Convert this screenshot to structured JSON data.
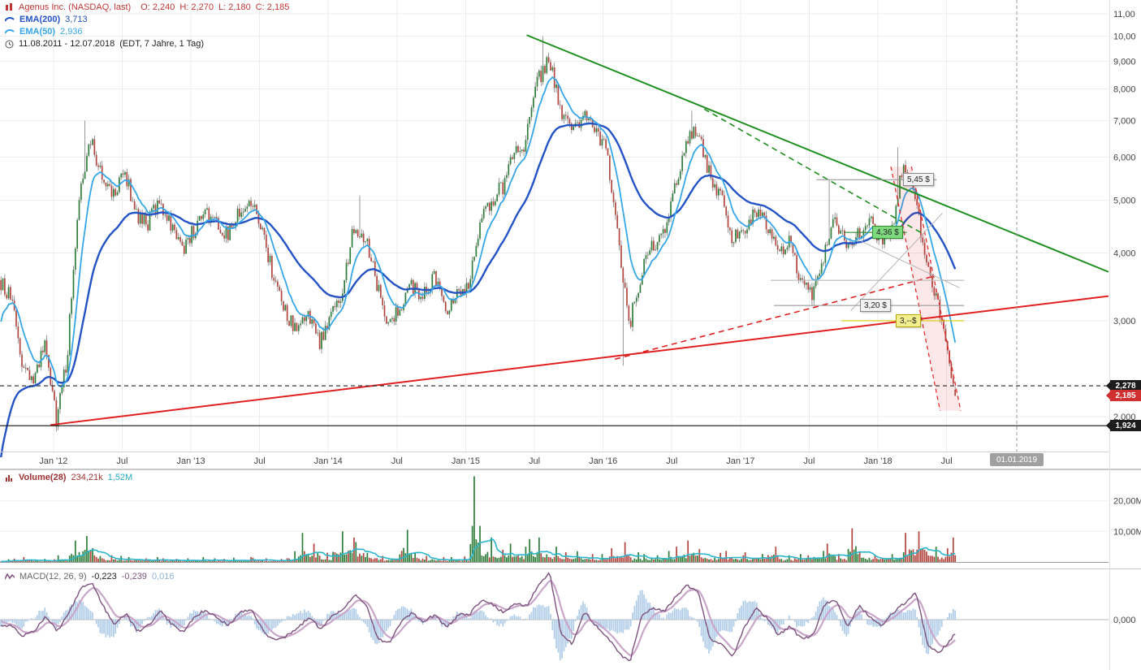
{
  "legend": {
    "symbol": "Agenus Inc. (NASDAQ, last)",
    "ohlc": {
      "o": "O: 2,240",
      "h": "H: 2,270",
      "l": "L: 2,180",
      "c": "C: 2,185"
    },
    "ema200": {
      "label": "EMA(200)",
      "value": "3,713"
    },
    "ema50": {
      "label": "EMA(50)",
      "value": "2,936"
    },
    "range": {
      "dates": "11.08.2011 - 12.07.2018",
      "detail": "(EDT, 7 Jahre, 1 Tag)"
    }
  },
  "volume_legend": {
    "label": "Volume(28)",
    "value": "234,21k",
    "avg": "1,52M"
  },
  "macd_legend": {
    "label": "MACD(12, 26, 9)",
    "v1": "-0,223",
    "v2": "-0,239",
    "v3": "0,016"
  },
  "chart_data": {
    "type": "candlestick",
    "title": "Agenus Inc. (NASDAQ)",
    "timeframe": "1 Tag",
    "date_start": "11.08.2011",
    "date_end": "12.07.2018",
    "log_scale": true,
    "last": {
      "open": 2.24,
      "high": 2.27,
      "low": 2.18,
      "close": 2.185
    },
    "ema200_last": 3.713,
    "ema50_last": 2.936,
    "volume_last": "234,21k",
    "volume_avg": "1,52M",
    "macd_last": {
      "macd": -0.223,
      "signal": -0.239,
      "hist": 0.016
    },
    "price_axis_ticks": [
      {
        "label": "11,00",
        "value": 11
      },
      {
        "label": "10,00",
        "value": 10
      },
      {
        "label": "9,000",
        "value": 9
      },
      {
        "label": "8,000",
        "value": 8
      },
      {
        "label": "7,000",
        "value": 7
      },
      {
        "label": "6,000",
        "value": 6
      },
      {
        "label": "5,000",
        "value": 5
      },
      {
        "label": "4,000",
        "value": 4
      },
      {
        "label": "3,000",
        "value": 3
      },
      {
        "label": "2,000",
        "value": 2
      }
    ],
    "x_axis_ticks": [
      {
        "label": "Jan '12",
        "m": 4.67
      },
      {
        "label": "Jul",
        "m": 10.67
      },
      {
        "label": "Jan '13",
        "m": 16.67
      },
      {
        "label": "Jul",
        "m": 22.67
      },
      {
        "label": "Jan '14",
        "m": 28.67
      },
      {
        "label": "Jul",
        "m": 34.67
      },
      {
        "label": "Jan '15",
        "m": 40.67
      },
      {
        "label": "Jul",
        "m": 46.67
      },
      {
        "label": "Jan '16",
        "m": 52.67
      },
      {
        "label": "Jul",
        "m": 58.67
      },
      {
        "label": "Jan '17",
        "m": 64.67
      },
      {
        "label": "Jul",
        "m": 70.67
      },
      {
        "label": "Jan '18",
        "m": 76.67
      },
      {
        "label": "Jul",
        "m": 82.67
      }
    ],
    "volume_axis_ticks": [
      {
        "label": "20,00M",
        "value": 20
      },
      {
        "label": "10,00M",
        "value": 10
      }
    ],
    "macd_axis_ticks": [
      {
        "label": "0,000",
        "value": 0
      }
    ],
    "monthly": {
      "start": "2011-08",
      "close": [
        3.3,
        2.5,
        2.3,
        2.7,
        1.95,
        2.6,
        5.0,
        6.4,
        5.6,
        5.1,
        5.6,
        4.7,
        4.5,
        5.0,
        4.5,
        4.05,
        4.4,
        4.75,
        4.5,
        4.3,
        4.75,
        5.0,
        4.3,
        3.6,
        3.1,
        2.85,
        3.1,
        2.75,
        3.05,
        3.4,
        4.5,
        4.3,
        3.5,
        2.95,
        3.2,
        3.5,
        3.35,
        3.6,
        3.15,
        3.4,
        3.55,
        4.5,
        5.0,
        5.3,
        6.1,
        6.4,
        8.2,
        9.2,
        7.4,
        6.6,
        7.1,
        6.8,
        6.2,
        4.3,
        2.9,
        3.6,
        4.1,
        4.3,
        5.2,
        6.4,
        6.8,
        5.6,
        5.1,
        4.3,
        4.35,
        4.7,
        4.55,
        4.0,
        4.2,
        3.55,
        3.3,
        3.9,
        4.6,
        4.1,
        4.3,
        4.6,
        4.2,
        4.4,
        5.9,
        4.9,
        3.9,
        3.2,
        2.5,
        2.185
      ],
      "volume_mio": [
        0.9,
        1.1,
        1.6,
        1.0,
        0.9,
        2.2,
        7.0,
        8.5,
        4.5,
        2.2,
        2.0,
        1.6,
        1.2,
        1.6,
        1.2,
        1.0,
        1.2,
        1.6,
        1.2,
        1.0,
        1.4,
        1.6,
        1.4,
        1.2,
        1.0,
        3.5,
        9.5,
        6.0,
        3.0,
        10.0,
        8.0,
        6.5,
        3.0,
        2.0,
        2.5,
        10.5,
        3.0,
        2.0,
        1.6,
        1.6,
        1.8,
        28.0,
        8.0,
        4.0,
        6.0,
        5.0,
        7.5,
        8.0,
        5.0,
        3.2,
        3.5,
        2.6,
        2.6,
        4.5,
        6.5,
        3.2,
        2.6,
        2.2,
        3.6,
        5.0,
        7.0,
        4.2,
        3.0,
        3.6,
        2.2,
        3.2,
        2.6,
        5.0,
        2.2,
        2.6,
        2.2,
        3.6,
        6.0,
        2.6,
        11.0,
        3.2,
        2.4,
        2.6,
        3.2,
        9.5,
        10.0,
        5.0,
        4.5,
        8.0
      ],
      "macd": [
        -0.1,
        -0.3,
        -0.2,
        0.05,
        -0.2,
        0.1,
        0.55,
        0.68,
        0.25,
        -0.1,
        0.12,
        -0.22,
        -0.1,
        0.15,
        -0.08,
        -0.22,
        0.05,
        0.18,
        0.02,
        -0.1,
        0.15,
        0.18,
        -0.22,
        -0.38,
        -0.3,
        -0.15,
        0.05,
        -0.18,
        0.08,
        0.18,
        0.45,
        0.25,
        -0.35,
        -0.42,
        -0.05,
        0.12,
        -0.05,
        0.1,
        -0.15,
        0.08,
        0.1,
        0.35,
        0.28,
        0.12,
        0.3,
        0.25,
        0.62,
        0.85,
        -0.25,
        -0.45,
        0.15,
        -0.1,
        -0.3,
        -0.6,
        -0.78,
        0.05,
        0.22,
        0.15,
        0.42,
        0.62,
        0.48,
        -0.35,
        -0.45,
        -0.68,
        -0.15,
        0.22,
        0.02,
        -0.28,
        -0.12,
        -0.35,
        -0.28,
        0.28,
        0.35,
        -0.15,
        0.25,
        0.05,
        -0.1,
        0.12,
        0.3,
        0.5,
        -0.45,
        -0.6,
        -0.38,
        -0.22
      ]
    },
    "month_extremes": {
      "7": {
        "high": 7.0
      },
      "31": {
        "high": 5.1
      },
      "47": {
        "high": 10.0
      },
      "54": {
        "low": 2.48
      },
      "60": {
        "high": 7.3
      },
      "72": {
        "high": 5.45
      },
      "78": {
        "high": 6.25
      }
    },
    "trendlines": [
      {
        "name": "downtrend-major",
        "color": "#1f8f1f",
        "width": 2,
        "dash": null,
        "m1": 46.0,
        "p1": 10.05,
        "m2": 96.8,
        "p2": 3.69
      },
      {
        "name": "downtrend-dashed",
        "color": "#1f8f1f",
        "width": 1.6,
        "dash": "7,5",
        "m1": 61.5,
        "p1": 7.35,
        "m2": 80.4,
        "p2": 4.36
      },
      {
        "name": "uptrend-major",
        "color": "#e02020",
        "width": 2,
        "dash": null,
        "m1": 4.4,
        "p1": 1.93,
        "m2": 96.8,
        "p2": 3.33
      },
      {
        "name": "uptrend-dashed",
        "color": "#e02020",
        "width": 1.6,
        "dash": "7,5",
        "m1": 53.7,
        "p1": 2.55,
        "m2": 81.5,
        "p2": 3.62
      },
      {
        "name": "aux-gray-1",
        "color": "#b5b5b5",
        "width": 1,
        "dash": null,
        "m1": 74.3,
        "p1": 3.13,
        "m2": 82.3,
        "p2": 4.73
      },
      {
        "name": "aux-gray-2",
        "color": "#b5b5b5",
        "width": 1,
        "dash": null,
        "m1": 75.2,
        "p1": 4.2,
        "m2": 83.8,
        "p2": 3.45
      }
    ],
    "level_lines": [
      {
        "label": "5,45 $",
        "price": 5.45,
        "m1": 71.3,
        "m2": 81.8,
        "label_m": 78.9,
        "color": "#9a9a9a",
        "box": "gray"
      },
      {
        "label": "4,36 $",
        "price": 4.36,
        "m1": 73.7,
        "m2": 79.2,
        "label_m": 76.2,
        "color": "#2e8b2e",
        "box": "green"
      },
      {
        "label": null,
        "price": 3.56,
        "m1": 67.3,
        "m2": 84.2,
        "label_m": null,
        "color": "#b8b8b8",
        "box": null
      },
      {
        "label": "3,20 $",
        "price": 3.2,
        "m1": 67.6,
        "m2": 84.2,
        "label_m": 75.1,
        "color": "#9a9a9a",
        "box": "gray"
      },
      {
        "label": "3,--$",
        "price": 3.0,
        "m1": 73.5,
        "m2": 84.2,
        "label_m": 78.2,
        "color": "#d8c800",
        "box": "yellow"
      }
    ],
    "hlines": [
      {
        "price": 2.278,
        "style": "dashed",
        "color": "#222222"
      },
      {
        "price": 1.924,
        "style": "solid",
        "color": "#111111"
      }
    ],
    "channel": {
      "color": "#e02020",
      "fill": "rgba(224,32,32,0.10)",
      "points_mp": [
        [
          77.8,
          5.76
        ],
        [
          79.6,
          5.76
        ],
        [
          83.9,
          2.05
        ],
        [
          82.1,
          2.05
        ]
      ]
    },
    "markers": [
      {
        "label": "2,278",
        "price": 2.278,
        "color": "black"
      },
      {
        "label": "2,185",
        "price": 2.185,
        "color": "red"
      },
      {
        "label": "1,924",
        "price": 1.924,
        "color": "black"
      }
    ],
    "future": {
      "label": "01.01.2019",
      "m": 88.8
    }
  }
}
